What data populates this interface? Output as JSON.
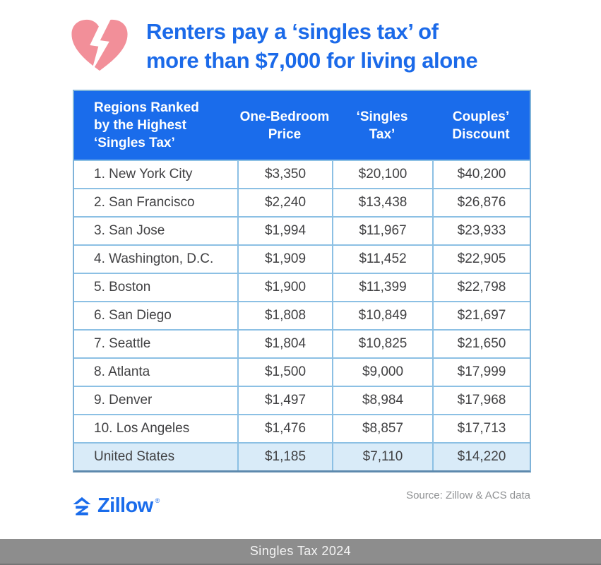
{
  "header": {
    "title_line1": "Renters pay a ‘singles tax’ of",
    "title_line2": "more than $7,000 for living alone"
  },
  "icons": {
    "heart": "broken-heart-lightning-icon",
    "brand": "zillow-house-z-icon"
  },
  "table_header": {
    "col0": "Regions Ranked\nby the Highest\n‘Singles Tax’",
    "col1": "One-Bedroom\nPrice",
    "col2": "‘Singles\nTax’",
    "col3": "Couples’\nDiscount"
  },
  "chart_data": {
    "type": "table",
    "title": "Renters pay a ‘singles tax’ of more than $7,000 for living alone",
    "columns": [
      "Regions Ranked by the Highest ‘Singles Tax’",
      "One-Bedroom Price",
      "‘Singles Tax’",
      "Couples’ Discount"
    ],
    "rows": [
      {
        "cells": [
          "1. New York City",
          "$3,350",
          "$20,100",
          "$40,200"
        ],
        "highlight": false
      },
      {
        "cells": [
          "2. San Francisco",
          "$2,240",
          "$13,438",
          "$26,876"
        ],
        "highlight": false
      },
      {
        "cells": [
          "3. San Jose",
          "$1,994",
          "$11,967",
          "$23,933"
        ],
        "highlight": false
      },
      {
        "cells": [
          "4. Washington, D.C.",
          "$1,909",
          "$11,452",
          "$22,905"
        ],
        "highlight": false
      },
      {
        "cells": [
          "5. Boston",
          "$1,900",
          "$11,399",
          "$22,798"
        ],
        "highlight": false
      },
      {
        "cells": [
          "6. San Diego",
          "$1,808",
          "$10,849",
          "$21,697"
        ],
        "highlight": false
      },
      {
        "cells": [
          "7. Seattle",
          "$1,804",
          "$10,825",
          "$21,650"
        ],
        "highlight": false
      },
      {
        "cells": [
          "8. Atlanta",
          "$1,500",
          "$9,000",
          "$17,999"
        ],
        "highlight": false
      },
      {
        "cells": [
          "9. Denver",
          "$1,497",
          "$8,984",
          "$17,968"
        ],
        "highlight": false
      },
      {
        "cells": [
          "10. Los Angeles",
          "$1,476",
          "$8,857",
          "$17,713"
        ],
        "highlight": false
      },
      {
        "cells": [
          "United States",
          "$1,185",
          "$7,110",
          "$14,220"
        ],
        "highlight": true
      }
    ]
  },
  "footer": {
    "brand": "Zillow",
    "registered_mark": "®",
    "source": "Source: Zillow & ACS data"
  },
  "bottom_bar": {
    "label": "Singles Tax 2024"
  },
  "colors": {
    "accent_blue": "#1a6ceb",
    "title_blue": "#1b6ae9",
    "heart_pink": "#f28f99",
    "table_border": "#8cc0e4",
    "table_outer_border": "#7fb3d9",
    "summary_row_bg": "#d9ebf8",
    "body_text": "#414143",
    "source_gray": "#8f9193",
    "bottom_bar_gray": "#8d8d8d"
  }
}
